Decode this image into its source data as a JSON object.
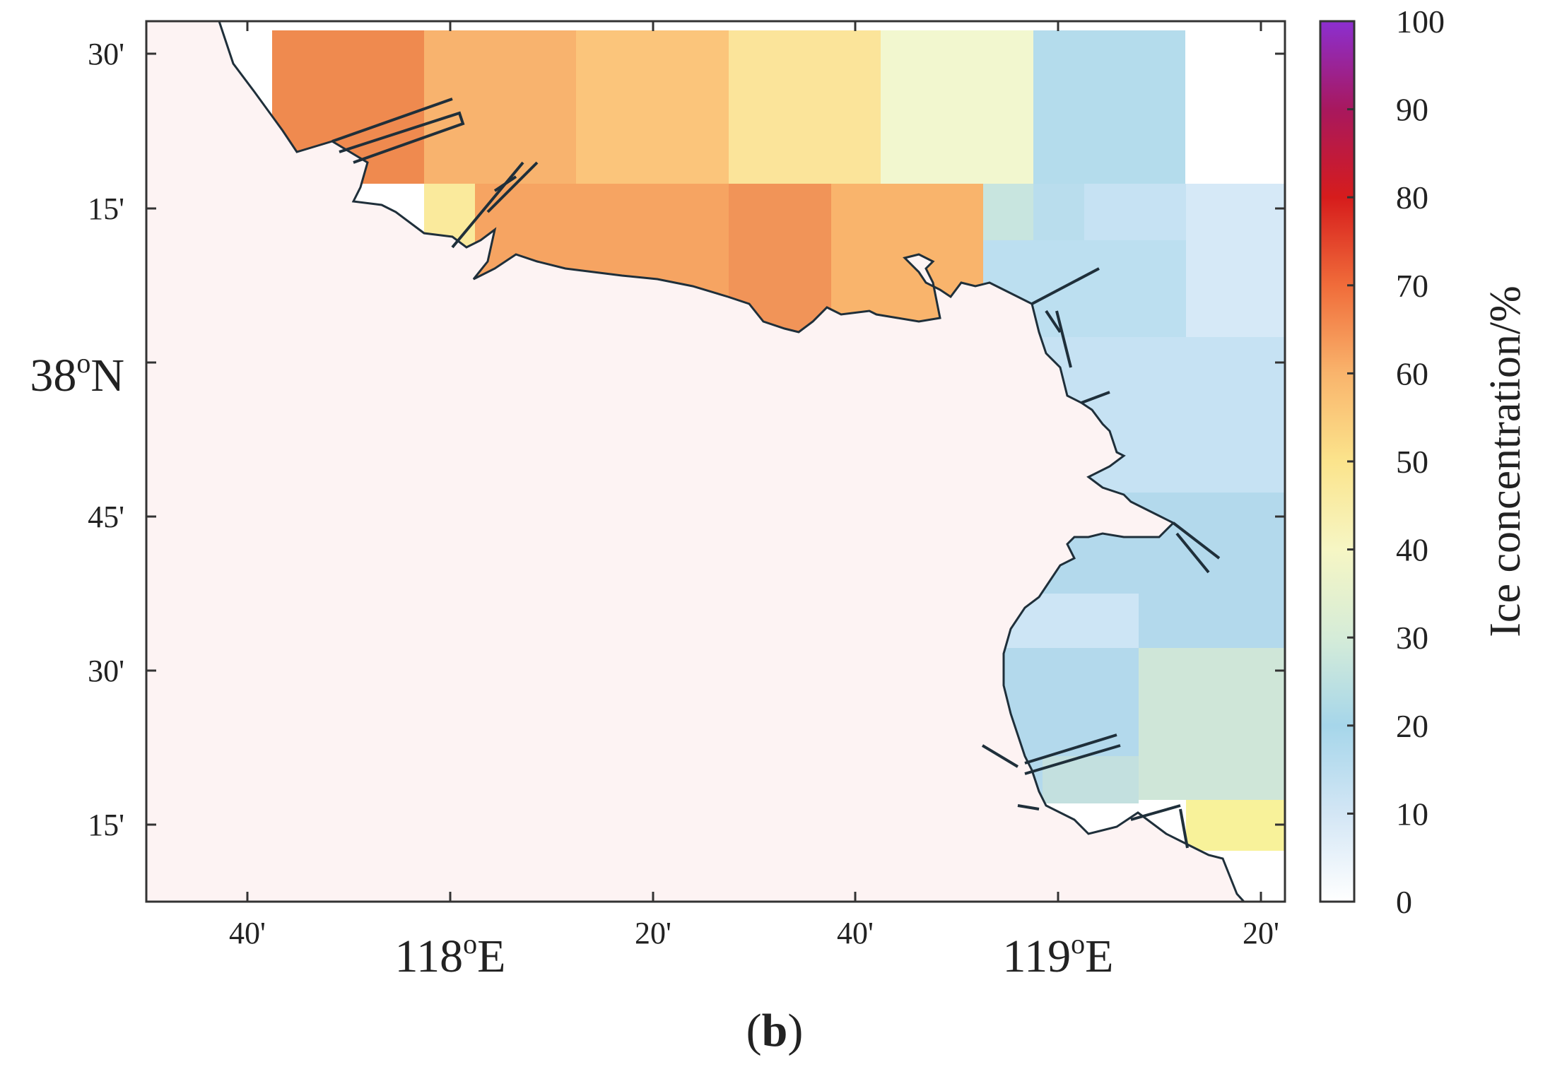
{
  "map": {
    "lon_ticks": [
      "40'",
      "118°E",
      "20'",
      "40'",
      "119°E",
      "20'"
    ],
    "lon_major_labels": [
      "118",
      "E",
      "119",
      "E"
    ],
    "lat_ticks": [
      "30'",
      "15'",
      "38°N",
      "45'",
      "30'",
      "15'"
    ],
    "lat_major_label": [
      "38",
      "N"
    ],
    "degree_symbol": "o"
  },
  "colorbar": {
    "label": "Ice concentration/%",
    "ticks": [
      "0",
      "10",
      "20",
      "30",
      "40",
      "50",
      "60",
      "70",
      "80",
      "90",
      "100"
    ],
    "min": 0,
    "max": 100
  },
  "panel_label": "(b)",
  "panel_letter": "b",
  "colors": {
    "land": "#fdf3f3",
    "coastline": "#1f2f3a",
    "frame": "#333333"
  },
  "chart_data": {
    "type": "heatmap",
    "title": "",
    "legend": "Ice concentration/%",
    "value_range": [
      0,
      100
    ],
    "colormap": [
      {
        "v": 0,
        "c": "#ffffff"
      },
      {
        "v": 10,
        "c": "#d3e6f5"
      },
      {
        "v": 20,
        "c": "#a6d6ea"
      },
      {
        "v": 30,
        "c": "#d5ecd8"
      },
      {
        "v": 40,
        "c": "#f6f6c4"
      },
      {
        "v": 50,
        "c": "#fbe48c"
      },
      {
        "v": 60,
        "c": "#f9b46c"
      },
      {
        "v": 70,
        "c": "#f06c3a"
      },
      {
        "v": 80,
        "c": "#d61c1c"
      },
      {
        "v": 90,
        "c": "#a8185e"
      },
      {
        "v": 100,
        "c": "#8c2fd0"
      }
    ],
    "grid_cells": [
      {
        "lat": "upper",
        "lon": "col-2",
        "value": 65
      },
      {
        "lat": "upper",
        "lon": "col-3",
        "value": 58
      },
      {
        "lat": "upper",
        "lon": "col-4",
        "value": 55
      },
      {
        "lat": "upper",
        "lon": "col-5",
        "value": 45
      },
      {
        "lat": "upper",
        "lon": "col-6",
        "value": 38
      },
      {
        "lat": "upper",
        "lon": "col-7",
        "value": 18
      },
      {
        "lat": "second",
        "lon": "col-3a",
        "value": 45
      },
      {
        "lat": "second",
        "lon": "col-3b",
        "value": 63
      },
      {
        "lat": "second",
        "lon": "col-4",
        "value": 62
      },
      {
        "lat": "second",
        "lon": "col-5",
        "value": 65
      },
      {
        "lat": "second",
        "lon": "col-6",
        "value": 60
      },
      {
        "lat": "second",
        "lon": "col-7",
        "value": 25
      },
      {
        "lat": "second",
        "lon": "col-8",
        "value": 12
      },
      {
        "lat": "middle",
        "lon": "col-8",
        "value": 12
      },
      {
        "lat": "lower",
        "lon": "col-8",
        "value": 18
      },
      {
        "lat": "bottom",
        "lon": "col-8",
        "value": 28
      },
      {
        "lat": "bottom-edge",
        "lon": "col-9",
        "value": 45
      }
    ]
  }
}
